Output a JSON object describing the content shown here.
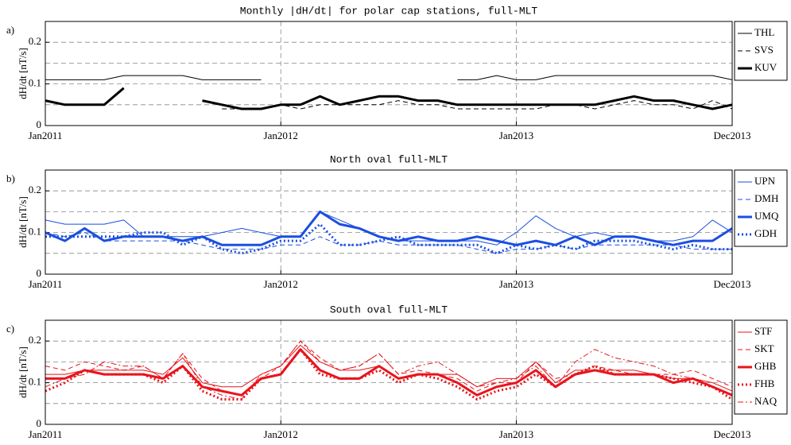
{
  "chart_data": [
    {
      "type": "line",
      "panel": "a)",
      "title": "Monthly |dH/dt| for polar cap stations, full-MLT",
      "y_label": "dH/dt [nT/s]",
      "x": [
        "2011-01",
        "2011-02",
        "2011-03",
        "2011-04",
        "2011-05",
        "2011-06",
        "2011-07",
        "2011-08",
        "2011-09",
        "2011-10",
        "2011-11",
        "2011-12",
        "2012-01",
        "2012-02",
        "2012-03",
        "2012-04",
        "2012-05",
        "2012-06",
        "2012-07",
        "2012-08",
        "2012-09",
        "2012-10",
        "2012-11",
        "2012-12",
        "2013-01",
        "2013-02",
        "2013-03",
        "2013-04",
        "2013-05",
        "2013-06",
        "2013-07",
        "2013-08",
        "2013-09",
        "2013-10",
        "2013-11",
        "2013-12"
      ],
      "xticks": [
        {
          "value": "2011-01",
          "label": "Jan2011"
        },
        {
          "value": "2012-01",
          "label": "Jan2012"
        },
        {
          "value": "2013-01",
          "label": "Jan2013"
        },
        {
          "value": "2013-12",
          "label": "Dec2013"
        }
      ],
      "ylim": [
        0,
        0.25
      ],
      "yticks": [
        0,
        0.1,
        0.2
      ],
      "ygrid": [
        0.05,
        0.1,
        0.15,
        0.2
      ],
      "grid": true,
      "series": [
        {
          "name": "THL",
          "color": "#000000",
          "linestyle": "solid",
          "linewidth": 1,
          "values": [
            0.11,
            0.11,
            0.11,
            0.11,
            0.12,
            0.12,
            0.12,
            0.12,
            0.11,
            0.11,
            0.11,
            0.11,
            null,
            null,
            null,
            null,
            null,
            null,
            null,
            null,
            null,
            0.11,
            0.11,
            0.12,
            0.11,
            0.11,
            0.12,
            0.12,
            0.12,
            0.12,
            0.12,
            0.12,
            0.12,
            0.12,
            0.12,
            0.11
          ]
        },
        {
          "name": "SVS",
          "color": "#000000",
          "linestyle": "dashed",
          "linewidth": 1,
          "values": [
            null,
            null,
            null,
            null,
            null,
            null,
            null,
            null,
            null,
            0.04,
            0.04,
            0.04,
            0.05,
            0.04,
            0.05,
            0.05,
            0.05,
            0.05,
            0.06,
            0.05,
            0.05,
            0.04,
            0.04,
            0.04,
            0.04,
            0.04,
            0.05,
            0.05,
            0.04,
            0.05,
            0.06,
            0.05,
            0.05,
            0.04,
            0.06,
            0.04
          ]
        },
        {
          "name": "KUV",
          "color": "#000000",
          "linestyle": "solid",
          "linewidth": 3,
          "values": [
            0.06,
            0.05,
            0.05,
            0.05,
            0.09,
            null,
            null,
            null,
            0.06,
            0.05,
            0.04,
            0.04,
            0.05,
            0.05,
            0.07,
            0.05,
            0.06,
            0.07,
            0.07,
            0.06,
            0.06,
            0.05,
            0.05,
            0.05,
            0.05,
            0.05,
            0.05,
            0.05,
            0.05,
            0.06,
            0.07,
            0.06,
            0.06,
            0.05,
            0.04,
            0.05
          ]
        }
      ]
    },
    {
      "type": "line",
      "panel": "b)",
      "title": "North oval full-MLT",
      "y_label": "dH/dt [nT/s]",
      "x": [
        "2011-01",
        "2011-02",
        "2011-03",
        "2011-04",
        "2011-05",
        "2011-06",
        "2011-07",
        "2011-08",
        "2011-09",
        "2011-10",
        "2011-11",
        "2011-12",
        "2012-01",
        "2012-02",
        "2012-03",
        "2012-04",
        "2012-05",
        "2012-06",
        "2012-07",
        "2012-08",
        "2012-09",
        "2012-10",
        "2012-11",
        "2012-12",
        "2013-01",
        "2013-02",
        "2013-03",
        "2013-04",
        "2013-05",
        "2013-06",
        "2013-07",
        "2013-08",
        "2013-09",
        "2013-10",
        "2013-11",
        "2013-12"
      ],
      "xticks": [
        {
          "value": "2011-01",
          "label": "Jan2011"
        },
        {
          "value": "2012-01",
          "label": "Jan2012"
        },
        {
          "value": "2013-01",
          "label": "Jan2013"
        },
        {
          "value": "2013-12",
          "label": "Dec2013"
        }
      ],
      "ylim": [
        0,
        0.25
      ],
      "yticks": [
        0,
        0.1,
        0.2
      ],
      "ygrid": [
        0.05,
        0.1,
        0.15,
        0.2
      ],
      "grid": true,
      "series": [
        {
          "name": "UPN",
          "color": "#1a4fe0",
          "linestyle": "solid",
          "linewidth": 1,
          "values": [
            0.13,
            0.12,
            0.12,
            0.12,
            0.13,
            0.09,
            0.09,
            0.09,
            0.09,
            0.1,
            0.11,
            0.1,
            0.09,
            0.09,
            0.15,
            0.13,
            0.11,
            0.09,
            0.08,
            0.08,
            0.08,
            0.08,
            0.08,
            0.07,
            0.1,
            0.14,
            0.11,
            0.09,
            0.1,
            0.09,
            0.09,
            0.08,
            0.08,
            0.09,
            0.13,
            0.1
          ]
        },
        {
          "name": "DMH",
          "color": "#1a4fe0",
          "linestyle": "dashed",
          "linewidth": 1,
          "values": [
            0.1,
            0.09,
            0.1,
            0.08,
            0.08,
            0.08,
            0.08,
            0.08,
            0.07,
            0.06,
            0.06,
            0.06,
            0.07,
            0.07,
            0.09,
            0.07,
            0.07,
            0.08,
            0.07,
            0.07,
            0.07,
            0.07,
            0.06,
            0.05,
            0.06,
            0.06,
            0.07,
            0.06,
            0.07,
            0.07,
            0.07,
            0.07,
            0.07,
            0.06,
            0.06,
            0.06
          ]
        },
        {
          "name": "UMQ",
          "color": "#1a4fe0",
          "linestyle": "solid",
          "linewidth": 3,
          "values": [
            0.1,
            0.08,
            0.11,
            0.08,
            0.09,
            0.09,
            0.09,
            0.08,
            0.09,
            0.07,
            0.07,
            0.07,
            0.09,
            0.09,
            0.15,
            0.12,
            0.11,
            0.09,
            0.08,
            0.09,
            0.08,
            0.08,
            0.09,
            0.08,
            0.07,
            0.08,
            0.07,
            0.09,
            0.07,
            0.09,
            0.09,
            0.08,
            0.07,
            0.08,
            0.08,
            0.11
          ]
        },
        {
          "name": "GDH",
          "color": "#1a4fe0",
          "linestyle": "dotted",
          "linewidth": 3,
          "values": [
            0.09,
            0.09,
            0.09,
            0.09,
            0.09,
            0.1,
            0.1,
            0.07,
            0.09,
            0.06,
            0.05,
            0.06,
            0.08,
            0.08,
            0.12,
            0.07,
            0.07,
            0.08,
            0.09,
            0.07,
            0.07,
            0.07,
            0.07,
            0.05,
            0.07,
            0.06,
            0.07,
            0.06,
            0.08,
            0.08,
            0.08,
            0.07,
            0.06,
            0.07,
            0.06,
            0.06
          ]
        }
      ]
    },
    {
      "type": "line",
      "panel": "c)",
      "title": "South oval full-MLT",
      "y_label": "dH/dt [nT/s]",
      "x": [
        "2011-01",
        "2011-02",
        "2011-03",
        "2011-04",
        "2011-05",
        "2011-06",
        "2011-07",
        "2011-08",
        "2011-09",
        "2011-10",
        "2011-11",
        "2011-12",
        "2012-01",
        "2012-02",
        "2012-03",
        "2012-04",
        "2012-05",
        "2012-06",
        "2012-07",
        "2012-08",
        "2012-09",
        "2012-10",
        "2012-11",
        "2012-12",
        "2013-01",
        "2013-02",
        "2013-03",
        "2013-04",
        "2013-05",
        "2013-06",
        "2013-07",
        "2013-08",
        "2013-09",
        "2013-10",
        "2013-11",
        "2013-12"
      ],
      "xticks": [
        {
          "value": "2011-01",
          "label": "Jan2011"
        },
        {
          "value": "2012-01",
          "label": "Jan2012"
        },
        {
          "value": "2013-01",
          "label": "Jan2013"
        },
        {
          "value": "2013-12",
          "label": "Dec2013"
        }
      ],
      "ylim": [
        0,
        0.25
      ],
      "yticks": [
        0,
        0.1,
        0.2
      ],
      "ygrid": [
        0.05,
        0.1,
        0.15,
        0.2
      ],
      "grid": true,
      "series": [
        {
          "name": "STF",
          "color": "#e8141c",
          "linestyle": "solid",
          "linewidth": 1,
          "values": [
            0.12,
            0.12,
            0.13,
            0.13,
            0.13,
            0.13,
            0.12,
            0.16,
            0.1,
            0.09,
            0.09,
            0.12,
            0.14,
            0.19,
            0.15,
            0.13,
            0.13,
            0.14,
            0.11,
            0.12,
            0.12,
            0.12,
            0.09,
            0.11,
            0.11,
            0.15,
            0.1,
            0.13,
            0.13,
            0.13,
            0.13,
            0.12,
            0.11,
            0.11,
            0.1,
            0.08
          ]
        },
        {
          "name": "SKT",
          "color": "#e8141c",
          "linestyle": "dashed",
          "linewidth": 1,
          "values": [
            0.14,
            0.13,
            0.15,
            0.14,
            0.13,
            0.14,
            0.11,
            0.17,
            0.11,
            0.08,
            0.07,
            0.11,
            0.14,
            0.2,
            0.16,
            0.13,
            0.14,
            0.17,
            0.12,
            0.13,
            0.12,
            0.11,
            0.08,
            0.1,
            0.1,
            0.15,
            0.11,
            0.12,
            0.14,
            0.13,
            0.12,
            0.12,
            0.12,
            0.13,
            0.11,
            0.09
          ]
        },
        {
          "name": "GHB",
          "color": "#e8141c",
          "linestyle": "solid",
          "linewidth": 3,
          "values": [
            0.11,
            0.11,
            0.13,
            0.12,
            0.12,
            0.12,
            0.11,
            0.14,
            0.09,
            0.08,
            0.07,
            0.11,
            0.12,
            0.18,
            0.13,
            0.11,
            0.11,
            0.14,
            0.11,
            0.12,
            0.12,
            0.1,
            0.07,
            0.09,
            0.1,
            0.13,
            0.09,
            0.12,
            0.13,
            0.12,
            0.12,
            0.12,
            0.1,
            0.11,
            0.09,
            0.07
          ]
        },
        {
          "name": "FHB",
          "color": "#e8141c",
          "linestyle": "dotted",
          "linewidth": 3,
          "values": [
            0.08,
            0.1,
            0.13,
            0.12,
            0.12,
            0.12,
            0.1,
            0.14,
            0.08,
            0.06,
            0.06,
            0.11,
            0.12,
            0.18,
            0.12,
            0.11,
            0.11,
            0.13,
            0.1,
            0.12,
            0.11,
            0.09,
            0.06,
            0.08,
            0.09,
            0.12,
            0.09,
            0.12,
            0.14,
            0.12,
            0.12,
            0.12,
            0.11,
            0.1,
            0.09,
            0.06
          ]
        },
        {
          "name": "NAQ",
          "color": "#e8141c",
          "linestyle": "dashdot",
          "linewidth": 1,
          "values": [
            0.09,
            0.11,
            0.12,
            0.15,
            0.14,
            0.14,
            0.11,
            0.17,
            0.09,
            0.07,
            0.06,
            0.12,
            0.14,
            0.2,
            0.15,
            0.13,
            0.14,
            0.17,
            0.12,
            0.14,
            0.15,
            0.12,
            0.09,
            0.1,
            0.11,
            0.14,
            0.09,
            0.15,
            0.18,
            0.16,
            0.15,
            0.14,
            0.12,
            0.11,
            0.09,
            0.07
          ]
        }
      ]
    }
  ]
}
